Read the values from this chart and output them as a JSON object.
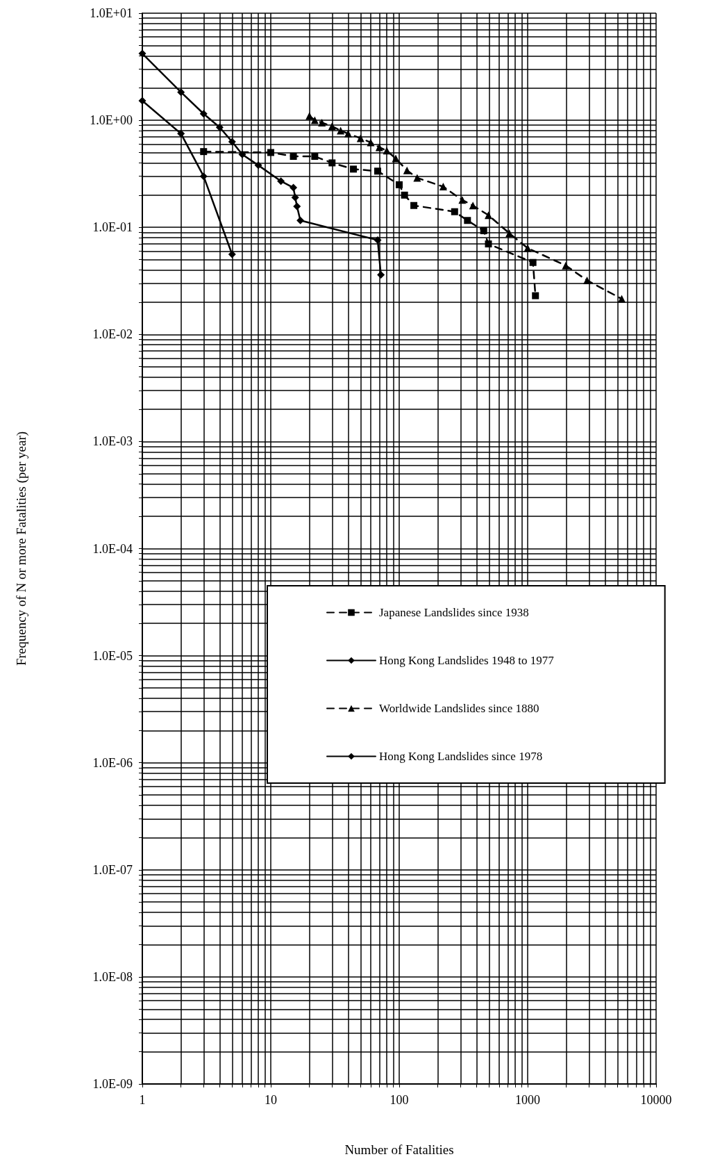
{
  "chart_data": {
    "type": "line",
    "xlabel": "Number of Fatalities",
    "ylabel": "Frequency of N or more Fatalities (per year)",
    "log": "xy",
    "grid": true,
    "legend": "right",
    "xlim": [
      1,
      10000
    ],
    "xticks": [
      1,
      10,
      100,
      1000,
      10000
    ],
    "ylim": [
      1e-09,
      10
    ],
    "yticks": [
      {
        "value": 1e-09,
        "label": "1.0E-09"
      },
      {
        "value": 1e-08,
        "label": "1.0E-08"
      },
      {
        "value": 1e-07,
        "label": "1.0E-07"
      },
      {
        "value": 1e-06,
        "label": "1.0E-06"
      },
      {
        "value": 1e-05,
        "label": "1.0E-05"
      },
      {
        "value": 0.0001,
        "label": "1.0E-04"
      },
      {
        "value": 0.001,
        "label": "1.0E-03"
      },
      {
        "value": 0.01,
        "label": "1.0E-02"
      },
      {
        "value": 0.1,
        "label": "1.0E-01"
      },
      {
        "value": 1,
        "label": "1.0E+00"
      },
      {
        "value": 10,
        "label": "1.0E+01"
      }
    ],
    "series": [
      {
        "name": "Japanese Landslides since 1938",
        "color": "#000000",
        "marker": "square",
        "line_style": "dashed",
        "x": [
          3,
          10,
          15,
          22,
          30,
          44,
          68,
          100,
          110,
          130,
          270,
          340,
          455,
          495,
          1100,
          1150
        ],
        "values": [
          0.51,
          0.5,
          0.46,
          0.46,
          0.4,
          0.35,
          0.335,
          0.25,
          0.2,
          0.16,
          0.14,
          0.116,
          0.093,
          0.07,
          0.047,
          0.023
        ]
      },
      {
        "name": "Hong Kong Landslides 1948 to 1977",
        "color": "#000000",
        "marker": "diamond",
        "line_style": "solid",
        "x": [
          1,
          2,
          3,
          4,
          5,
          6,
          8,
          12,
          15,
          15.5,
          16,
          17,
          68,
          72
        ],
        "values": [
          4.2,
          1.83,
          1.15,
          0.86,
          0.63,
          0.48,
          0.38,
          0.27,
          0.235,
          0.19,
          0.157,
          0.116,
          0.076,
          0.036
        ]
      },
      {
        "name": "Worldwide Landslides since 1880",
        "color": "#000000",
        "marker": "triangle",
        "line_style": "dashed",
        "x": [
          20,
          22,
          25,
          30,
          35,
          40,
          50,
          60,
          70,
          80,
          94,
          115,
          138,
          220,
          310,
          375,
          495,
          720,
          1000,
          1980,
          2900,
          5400
        ],
        "values": [
          1.1,
          1.0,
          0.95,
          0.88,
          0.8,
          0.75,
          0.68,
          0.62,
          0.56,
          0.52,
          0.44,
          0.34,
          0.29,
          0.24,
          0.18,
          0.16,
          0.13,
          0.088,
          0.064,
          0.044,
          0.032,
          0.0215
        ]
      },
      {
        "name": "Hong Kong Landslides since 1978",
        "color": "#000000",
        "marker": "diamond",
        "line_style": "solid",
        "x": [
          1,
          2,
          3,
          5
        ],
        "values": [
          1.52,
          0.75,
          0.3,
          0.056
        ]
      }
    ]
  }
}
